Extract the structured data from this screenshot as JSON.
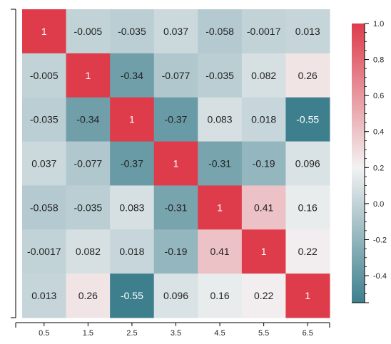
{
  "chart_data": {
    "type": "heatmap",
    "title": "",
    "xlabel": "",
    "ylabel": "",
    "x_ticks": [
      "0.5",
      "1.5",
      "2.5",
      "3.5",
      "4.5",
      "5.5",
      "6.5"
    ],
    "matrix": [
      [
        "1",
        "-0.005",
        "-0.035",
        "0.037",
        "-0.058",
        "-0.0017",
        "0.013"
      ],
      [
        "-0.005",
        "1",
        "-0.34",
        "-0.077",
        "-0.035",
        "0.082",
        "0.26"
      ],
      [
        "-0.035",
        "-0.34",
        "1",
        "-0.37",
        "0.083",
        "0.018",
        "-0.55"
      ],
      [
        "0.037",
        "-0.077",
        "-0.37",
        "1",
        "-0.31",
        "-0.19",
        "0.096"
      ],
      [
        "-0.058",
        "-0.035",
        "0.083",
        "-0.31",
        "1",
        "0.41",
        "0.16"
      ],
      [
        "-0.0017",
        "0.082",
        "0.018",
        "-0.19",
        "0.41",
        "1",
        "0.22"
      ],
      [
        "0.013",
        "0.26",
        "-0.55",
        "0.096",
        "0.16",
        "0.22",
        "1"
      ]
    ],
    "colorbar": {
      "min": -0.55,
      "max": 1.0,
      "ticks": [
        "1.0",
        "0.8",
        "0.6",
        "0.4",
        "0.2",
        "0.0",
        "-0.2",
        "-0.4"
      ],
      "colors": {
        "low": "#3e7f8e",
        "mid": "#f2f2f2",
        "high": "#de3c4b"
      }
    },
    "grid": false,
    "legend": "right"
  }
}
